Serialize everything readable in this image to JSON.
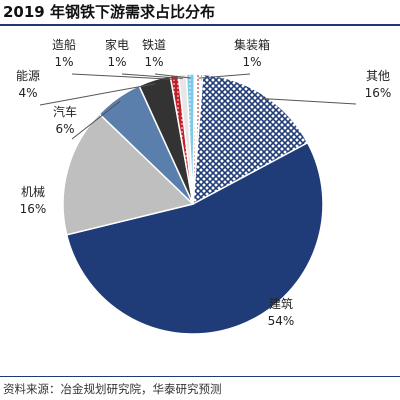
{
  "title": "2019 年钢铁下游需求占比分布",
  "source": "资料来源：冶金规划研究院，华泰研究预测",
  "colors": {
    "title_rule": "#1b3a78",
    "construction": "#1f3c78",
    "machinery": "#bfbfbf",
    "auto": "#5b7fad",
    "energy": "#333333",
    "shipbuilding": "#c0202a",
    "appliance": "#e7e6e6",
    "railway": "#7ec8e8",
    "container": "#f09a8a",
    "other": "#1f3c78"
  },
  "chart_data": {
    "type": "pie",
    "title": "2019 年钢铁下游需求占比分布",
    "unit": "%",
    "start": "12 o'clock, clockwise",
    "slices": [
      {
        "name": "建筑",
        "value": 54,
        "label": "54%",
        "color_key": "construction",
        "pattern": "solid"
      },
      {
        "name": "机械",
        "value": 16,
        "label": "16%",
        "color_key": "machinery",
        "pattern": "solid"
      },
      {
        "name": "汽车",
        "value": 6,
        "label": "6%",
        "color_key": "auto",
        "pattern": "solid"
      },
      {
        "name": "能源",
        "value": 4,
        "label": "4%",
        "color_key": "energy",
        "pattern": "solid"
      },
      {
        "name": "造船",
        "value": 1,
        "label": "1%",
        "color_key": "shipbuilding",
        "pattern": "dots"
      },
      {
        "name": "家电",
        "value": 1,
        "label": "1%",
        "color_key": "appliance",
        "pattern": "solid"
      },
      {
        "name": "铁道",
        "value": 1,
        "label": "1%",
        "color_key": "railway",
        "pattern": "dots"
      },
      {
        "name": "集装箱",
        "value": 1,
        "label": "1%",
        "color_key": "container",
        "pattern": "dots"
      },
      {
        "name": "其他",
        "value": 16,
        "label": "16%",
        "color_key": "other",
        "pattern": "crosshatch"
      }
    ]
  }
}
